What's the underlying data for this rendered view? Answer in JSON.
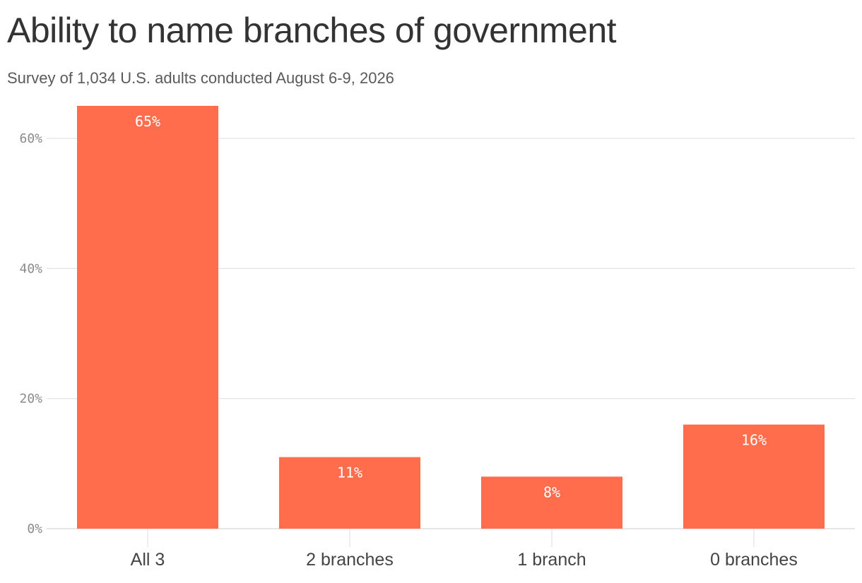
{
  "chart_data": {
    "type": "bar",
    "title": "Ability to name branches of government",
    "subtitle": "Survey of 1,034 U.S. adults conducted August 6-9, 2026",
    "categories": [
      "All 3",
      "2 branches",
      "1 branch",
      "0 branches"
    ],
    "values": [
      65,
      11,
      8,
      16
    ],
    "data_labels": [
      "65%",
      "11%",
      "8%",
      "16%"
    ],
    "ylim": [
      0,
      65
    ],
    "yticks": [
      0,
      20,
      40,
      60
    ],
    "ytick_labels": [
      "0%",
      "20%",
      "40%",
      "60%"
    ],
    "xlabel": "",
    "ylabel": "",
    "grid": true,
    "colors": {
      "bar": "#ff6d4d",
      "grid": "#dddddd",
      "axis": "#cccccc"
    }
  }
}
